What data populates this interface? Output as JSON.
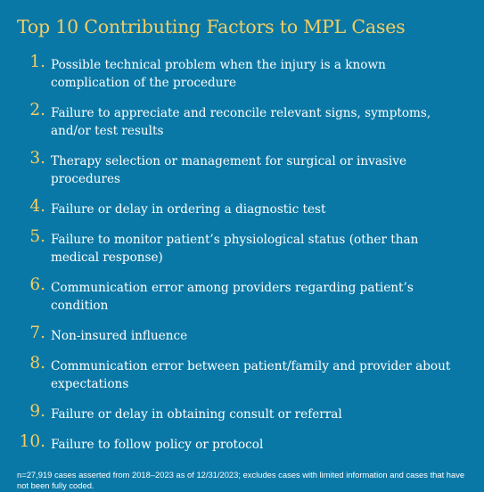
{
  "title": "Top 10 Contributing Factors to MPL Cases",
  "colors": {
    "background": "#0a78a6",
    "accent": "#f2cd63",
    "text": "#ffffff"
  },
  "factors": [
    {
      "number": "1.",
      "text": "Possible technical problem when the injury is a known complication of the procedure"
    },
    {
      "number": "2.",
      "text": "Failure to appreciate and reconcile relevant signs, symptoms, and/or test results"
    },
    {
      "number": "3.",
      "text": "Therapy selection or management for surgical or invasive procedures"
    },
    {
      "number": "4.",
      "text": "Failure or delay in ordering a diagnostic test"
    },
    {
      "number": "5.",
      "text": "Failure to monitor patient’s physiological status (other than medical response)"
    },
    {
      "number": "6.",
      "text": "Communication error among providers regarding patient’s condition"
    },
    {
      "number": "7.",
      "text": "Non-insured influence"
    },
    {
      "number": "8.",
      "text": "Communication error between patient/family and provider about expectations"
    },
    {
      "number": "9.",
      "text": "Failure or delay in obtaining consult or referral"
    },
    {
      "number": "10.",
      "text": "Failure to follow policy or protocol"
    }
  ],
  "footnote": "n=27,919 cases asserted from 2018–2023 as of 12/31/2023; excludes cases with limited information and cases that have not been fully coded."
}
